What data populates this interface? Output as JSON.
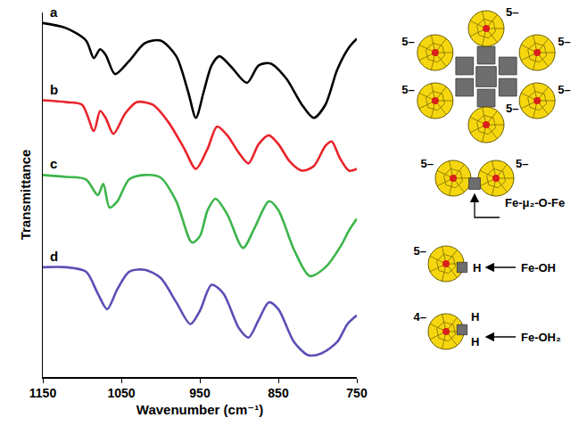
{
  "chart_data": {
    "type": "line",
    "x_label": "Wavenumber (cm⁻¹)",
    "y_label": "Transmittance",
    "xlim": [
      1150,
      750
    ],
    "xticks": [
      1150,
      1050,
      950,
      850,
      750
    ],
    "ylim": [
      0,
      100
    ],
    "tick_labels": "x",
    "grid": false,
    "series": [
      {
        "name": "a",
        "color": "#000000",
        "x": [
          1150,
          1120,
          1095,
          1085,
          1077,
          1070,
          1058,
          1040,
          1020,
          1000,
          980,
          965,
          955,
          945,
          935,
          925,
          910,
          890,
          875,
          860,
          840,
          820,
          805,
          790,
          775,
          760,
          750
        ],
        "values": [
          97.1,
          95.7,
          92.3,
          87.5,
          89.9,
          88.4,
          83.1,
          86.7,
          91.6,
          92.3,
          88.0,
          78.3,
          71.1,
          78.3,
          85.5,
          88.0,
          85.1,
          80.7,
          85.5,
          86.0,
          81.9,
          74.7,
          71.1,
          74.7,
          84.3,
          90.4,
          92.8
        ]
      },
      {
        "name": "b",
        "color": "#e8242c",
        "x": [
          1150,
          1120,
          1100,
          1085,
          1077,
          1070,
          1060,
          1045,
          1030,
          1010,
          990,
          970,
          955,
          940,
          928,
          915,
          900,
          888,
          875,
          862,
          850,
          835,
          820,
          805,
          790,
          782,
          772,
          760,
          750
        ],
        "values": [
          75.9,
          75.4,
          74.7,
          67.5,
          73.0,
          71.1,
          66.7,
          72.3,
          75.4,
          74.7,
          69.9,
          62.7,
          57.1,
          62.7,
          68.7,
          66.3,
          61.4,
          58.6,
          63.9,
          66.3,
          63.9,
          59.0,
          56.6,
          57.8,
          63.4,
          64.6,
          60.2,
          56.6,
          57.1
        ]
      },
      {
        "name": "c",
        "color": "#3cb54a",
        "x": [
          1150,
          1120,
          1095,
          1080,
          1073,
          1065,
          1055,
          1040,
          1020,
          1000,
          980,
          960,
          950,
          940,
          930,
          915,
          895,
          880,
          862,
          850,
          830,
          810,
          790,
          770,
          760,
          750
        ],
        "values": [
          55.4,
          54.9,
          54.2,
          49.9,
          53.0,
          46.5,
          48.2,
          54.2,
          55.4,
          54.7,
          48.2,
          36.9,
          38.6,
          45.8,
          48.9,
          44.6,
          35.4,
          41.0,
          48.2,
          45.8,
          34.9,
          27.7,
          30.1,
          36.1,
          40.2,
          43.4
        ]
      },
      {
        "name": "d",
        "color": "#5a4fb5",
        "x": [
          1150,
          1120,
          1095,
          1080,
          1068,
          1055,
          1040,
          1020,
          1000,
          980,
          962,
          950,
          935,
          920,
          900,
          888,
          875,
          862,
          850,
          830,
          812,
          795,
          775,
          762,
          750
        ],
        "values": [
          30.1,
          30.1,
          28.9,
          22.9,
          18.6,
          24.1,
          28.9,
          29.4,
          27.2,
          20.5,
          14.5,
          18.1,
          25.3,
          22.9,
          13.3,
          10.8,
          15.7,
          20.5,
          18.6,
          9.6,
          6.0,
          6.5,
          9.6,
          14.5,
          16.9
        ]
      }
    ]
  },
  "structures": [
    {
      "charges": [
        "5–",
        "5–",
        "5–",
        "5–",
        "5–",
        "5–"
      ]
    },
    {
      "charges": [
        "5–",
        "5–"
      ],
      "label": "Fe-μ₂-O-Fe"
    },
    {
      "charges": [
        "5–"
      ],
      "atoms": [
        "H"
      ],
      "label": "Fe-OH"
    },
    {
      "charges": [
        "4–"
      ],
      "atoms": [
        "H",
        "H"
      ],
      "label": "Fe-OH₂"
    }
  ]
}
